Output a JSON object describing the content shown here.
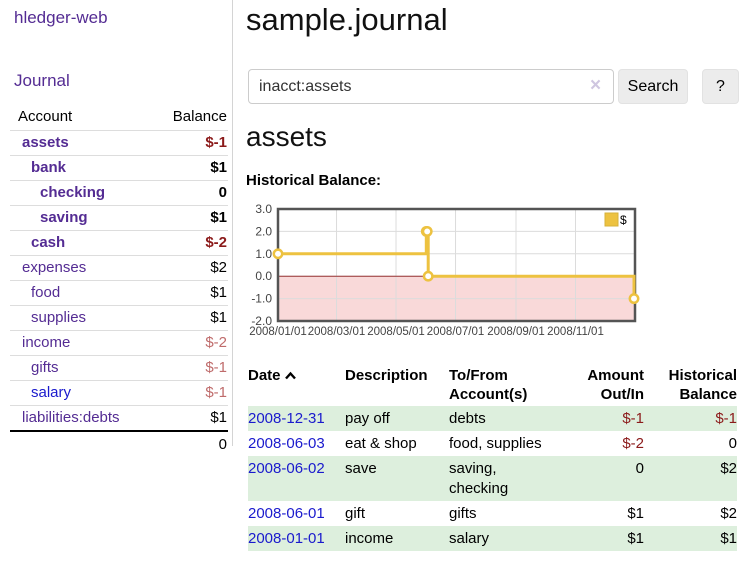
{
  "app": {
    "title": "hledger-web"
  },
  "sidebar": {
    "nav_journal": "Journal",
    "table": {
      "account_header": "Account",
      "balance_header": "Balance",
      "accounts": [
        {
          "name": "assets",
          "depth": 1,
          "selected": true,
          "balance": "$-1"
        },
        {
          "name": "bank",
          "depth": 2,
          "selected": true,
          "balance": "$1"
        },
        {
          "name": "checking",
          "depth": 3,
          "selected": true,
          "balance": "0"
        },
        {
          "name": "saving",
          "depth": 3,
          "selected": true,
          "balance": "$1"
        },
        {
          "name": "cash",
          "depth": 2,
          "selected": true,
          "balance": "$-2"
        },
        {
          "name": "expenses",
          "depth": 1,
          "selected": false,
          "balance": "$2"
        },
        {
          "name": "food",
          "depth": 2,
          "selected": false,
          "balance": "$1"
        },
        {
          "name": "supplies",
          "depth": 2,
          "selected": false,
          "balance": "$1"
        },
        {
          "name": "income",
          "depth": 1,
          "selected": false,
          "balance": "$-2"
        },
        {
          "name": "gifts",
          "depth": 2,
          "selected": false,
          "balance": "$-1"
        },
        {
          "name": "salary",
          "depth": 2,
          "selected": false,
          "balance": "$-1",
          "link_color": "blue"
        },
        {
          "name": "liabilities:debts",
          "depth": 1,
          "selected": false,
          "balance": "$1"
        }
      ],
      "total": "0"
    }
  },
  "main": {
    "title": "sample.journal",
    "search": {
      "value": "inacct:assets",
      "placeholder": "",
      "clear_label": "×",
      "clear_icon": "clear-x-icon",
      "button_label": "Search",
      "help_label": "?"
    },
    "account_heading": "assets",
    "chart_label": "Historical Balance:"
  },
  "chart_data": {
    "type": "line",
    "step": true,
    "title": "Historical Balance",
    "series": [
      {
        "name": "$",
        "color": "#edc240",
        "points": [
          [
            "2008-01-01",
            1
          ],
          [
            "2008-06-01",
            2
          ],
          [
            "2008-06-02",
            2
          ],
          [
            "2008-06-03",
            0
          ],
          [
            "2008-12-31",
            -1
          ]
        ]
      }
    ],
    "x_domain": [
      "2008-01-01",
      "2009-01-01"
    ],
    "xticks": [
      "2008/01/01",
      "2008/03/01",
      "2008/05/01",
      "2008/07/01",
      "2008/09/01",
      "2008/11/01"
    ],
    "yticks": [
      3.0,
      2.0,
      1.0,
      0.0,
      -1.0,
      -2.0
    ],
    "ylim": [
      -2,
      3
    ],
    "grid": true,
    "legend_position": "top-right",
    "negative_region": {
      "below": 0,
      "fill": "#f9d9d9",
      "line_color": "#993333"
    },
    "marker": "open-circle"
  },
  "transactions": {
    "headers": {
      "date": "Date",
      "sort_icon": "chevron-up",
      "description": "Description",
      "accounts": "To/From Account(s)",
      "amount": "Amount Out/In",
      "balance": "Historical Balance"
    },
    "rows": [
      {
        "date": "2008-12-31",
        "description": "pay off",
        "accounts": "debts",
        "amount": "$-1",
        "balance": "$-1"
      },
      {
        "date": "2008-06-03",
        "description": "eat & shop",
        "accounts": "food, supplies",
        "amount": "$-2",
        "balance": "0"
      },
      {
        "date": "2008-06-02",
        "description": "save",
        "accounts": "saving, checking",
        "amount": "0",
        "balance": "$2"
      },
      {
        "date": "2008-06-01",
        "description": "gift",
        "accounts": "gifts",
        "amount": "$1",
        "balance": "$2"
      },
      {
        "date": "2008-01-01",
        "description": "income",
        "accounts": "salary",
        "amount": "$1",
        "balance": "$1"
      }
    ]
  },
  "colors": {
    "link_purple": "#542c93",
    "link_blue": "#1a1acd",
    "negative_strong": "#8b1a1a",
    "negative_soft": "#bf6b6b",
    "row_green": "#ddefdd",
    "chart_line": "#edc240",
    "chart_negative_fill": "#f9d9d9",
    "chart_zero_line": "#993333",
    "plot_border": "#545454"
  }
}
